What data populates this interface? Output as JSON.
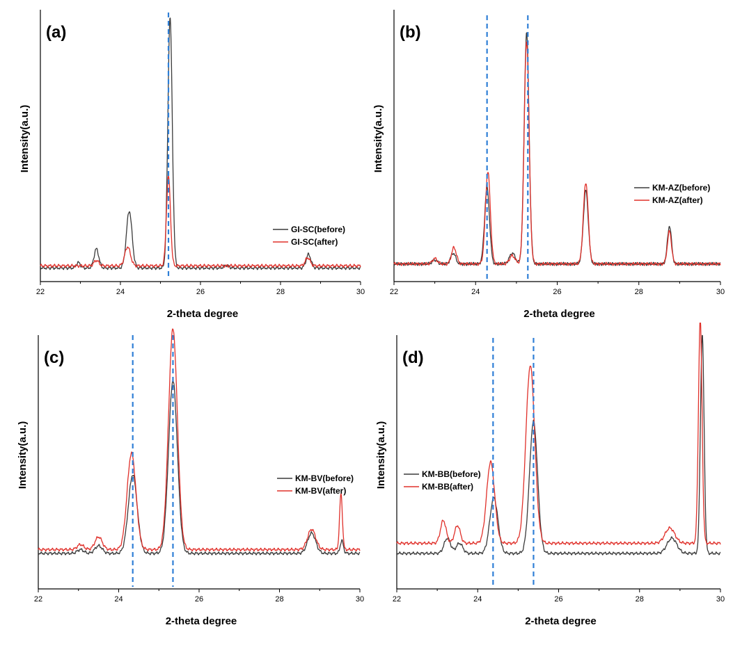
{
  "colors": {
    "before": "#3a3a3a",
    "after": "#e0302a",
    "reference": "#2f7fd6"
  },
  "chart_data": [
    {
      "panel_label": "(a)",
      "type": "line",
      "xlabel": "2-theta degree",
      "ylabel": "Intensity(a.u.)",
      "xlim": [
        22,
        30
      ],
      "ylim": [
        0,
        100
      ],
      "xticks": [
        22,
        24,
        26,
        28,
        30
      ],
      "legend_position": "right-middle",
      "reference_lines": [
        25.2
      ],
      "series": [
        {
          "name": "GI-SC(before)",
          "key": "before",
          "baseline": 5.0,
          "peaks": [
            [
              22.95,
              2,
              0.05
            ],
            [
              23.4,
              7,
              0.06
            ],
            [
              24.22,
              21,
              0.07
            ],
            [
              25.24,
              92,
              0.055
            ],
            [
              26.65,
              1,
              0.06
            ],
            [
              28.7,
              5,
              0.06
            ]
          ]
        },
        {
          "name": "GI-SC(after)",
          "key": "after",
          "baseline": 5.8,
          "peaks": [
            [
              23.4,
              2,
              0.06
            ],
            [
              24.18,
              7,
              0.07
            ],
            [
              25.2,
              33,
              0.05
            ],
            [
              28.68,
              3,
              0.06
            ]
          ]
        }
      ]
    },
    {
      "panel_label": "(b)",
      "type": "line",
      "xlabel": "2-theta degree",
      "ylabel": "Intensity(a.u.)",
      "xlim": [
        22,
        30
      ],
      "ylim": [
        0,
        100
      ],
      "xticks": [
        22,
        24,
        26,
        28,
        30
      ],
      "legend_position": "top-right",
      "reference_lines": [
        24.28,
        25.28
      ],
      "series": [
        {
          "name": "KM-AZ(before)",
          "key": "before",
          "baseline": 6.5,
          "peaks": [
            [
              23.0,
              1.5,
              0.06
            ],
            [
              23.45,
              4,
              0.06
            ],
            [
              24.28,
              28,
              0.06
            ],
            [
              24.9,
              4,
              0.07
            ],
            [
              25.25,
              85,
              0.06
            ],
            [
              26.7,
              27,
              0.06
            ],
            [
              28.75,
              14,
              0.05
            ]
          ]
        },
        {
          "name": "KM-AZ(after)",
          "key": "after",
          "baseline": 6.5,
          "peaks": [
            [
              23.0,
              2,
              0.06
            ],
            [
              23.47,
              6,
              0.06
            ],
            [
              24.3,
              34,
              0.06
            ],
            [
              24.9,
              3,
              0.07
            ],
            [
              25.25,
              82,
              0.06
            ],
            [
              26.7,
              30,
              0.06
            ],
            [
              28.75,
              12,
              0.05
            ]
          ]
        }
      ]
    },
    {
      "panel_label": "(c)",
      "type": "line",
      "xlabel": "2-theta degree",
      "ylabel": "Intensity(a.u.)",
      "xlim": [
        22,
        30
      ],
      "ylim": [
        0,
        100
      ],
      "xticks": [
        22,
        24,
        26,
        28,
        30
      ],
      "legend_position": "right-middle",
      "reference_lines": [
        24.35,
        25.35
      ],
      "series": [
        {
          "name": "KM-BV(before)",
          "key": "before",
          "baseline": 14.0,
          "peaks": [
            [
              23.05,
              1.5,
              0.08
            ],
            [
              23.5,
              3,
              0.09
            ],
            [
              24.35,
              31,
              0.11
            ],
            [
              25.35,
              68,
              0.11
            ],
            [
              28.8,
              8,
              0.1
            ],
            [
              29.55,
              5,
              0.04
            ]
          ]
        },
        {
          "name": "KM-BV(after)",
          "key": "after",
          "baseline": 15.5,
          "peaks": [
            [
              23.05,
              2,
              0.08
            ],
            [
              23.5,
              5,
              0.09
            ],
            [
              24.32,
              38,
              0.11
            ],
            [
              25.35,
              87,
              0.11
            ],
            [
              28.8,
              8,
              0.1
            ],
            [
              29.53,
              22,
              0.035
            ]
          ]
        }
      ]
    },
    {
      "panel_label": "(d)",
      "type": "line",
      "xlabel": "2-theta degree",
      "ylabel": "Intensity(a.u.)",
      "xlim": [
        22,
        30
      ],
      "ylim": [
        0,
        100
      ],
      "xticks": [
        22,
        24,
        26,
        28,
        30
      ],
      "legend_position": "left-middle",
      "reference_lines": [
        24.38,
        25.38
      ],
      "series": [
        {
          "name": "KM-BB(before)",
          "key": "before",
          "baseline": 14.0,
          "peaks": [
            [
              23.25,
              6,
              0.08
            ],
            [
              23.55,
              4,
              0.08
            ],
            [
              24.4,
              22,
              0.1
            ],
            [
              25.38,
              52,
              0.1
            ],
            [
              28.8,
              6,
              0.12
            ],
            [
              29.55,
              86,
              0.045
            ]
          ]
        },
        {
          "name": "KM-BB(after)",
          "key": "after",
          "baseline": 18.0,
          "peaks": [
            [
              23.15,
              9,
              0.07
            ],
            [
              23.5,
              7,
              0.07
            ],
            [
              24.32,
              32,
              0.1
            ],
            [
              25.3,
              70,
              0.11
            ],
            [
              28.75,
              6,
              0.12
            ],
            [
              29.5,
              88,
              0.045
            ]
          ]
        }
      ]
    }
  ]
}
